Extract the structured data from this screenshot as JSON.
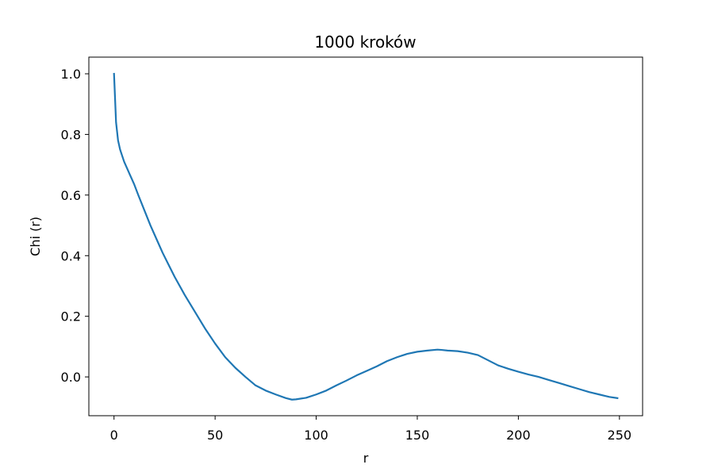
{
  "chart_data": {
    "type": "line",
    "title": "1000 kroków",
    "xlabel": "r",
    "ylabel": "Chi (r)",
    "xlim": [
      -12.45,
      261.45
    ],
    "ylim": [
      -0.128,
      1.055
    ],
    "xticks": [
      0,
      50,
      100,
      150,
      200,
      250
    ],
    "yticks": [
      0.0,
      0.2,
      0.4,
      0.6,
      0.8,
      1.0
    ],
    "xtick_labels": [
      "0",
      "50",
      "100",
      "150",
      "200",
      "250"
    ],
    "ytick_labels": [
      "0.0",
      "0.2",
      "0.4",
      "0.6",
      "0.8",
      "1.0"
    ],
    "grid": false,
    "line_color": "#1f77b4",
    "series": [
      {
        "name": "Chi(r)",
        "x": [
          0,
          1,
          2,
          3,
          4,
          5,
          6,
          8,
          10,
          12,
          15,
          18,
          21,
          24,
          27,
          30,
          35,
          40,
          45,
          50,
          55,
          60,
          65,
          70,
          75,
          80,
          85,
          88,
          90,
          95,
          100,
          105,
          110,
          115,
          120,
          125,
          130,
          135,
          140,
          145,
          150,
          155,
          160,
          162,
          165,
          170,
          175,
          180,
          185,
          190,
          195,
          200,
          205,
          210,
          215,
          220,
          225,
          230,
          235,
          240,
          245,
          249
        ],
        "y": [
          1.0,
          0.84,
          0.78,
          0.75,
          0.73,
          0.71,
          0.695,
          0.665,
          0.635,
          0.6,
          0.55,
          0.5,
          0.455,
          0.41,
          0.37,
          0.33,
          0.27,
          0.215,
          0.16,
          0.11,
          0.065,
          0.03,
          0.0,
          -0.028,
          -0.045,
          -0.058,
          -0.07,
          -0.075,
          -0.074,
          -0.069,
          -0.058,
          -0.045,
          -0.028,
          -0.012,
          0.005,
          0.02,
          0.035,
          0.052,
          0.065,
          0.076,
          0.083,
          0.087,
          0.09,
          0.089,
          0.087,
          0.085,
          0.08,
          0.072,
          0.055,
          0.038,
          0.027,
          0.017,
          0.008,
          0.0,
          -0.01,
          -0.02,
          -0.03,
          -0.04,
          -0.05,
          -0.058,
          -0.066,
          -0.07
        ]
      }
    ]
  }
}
